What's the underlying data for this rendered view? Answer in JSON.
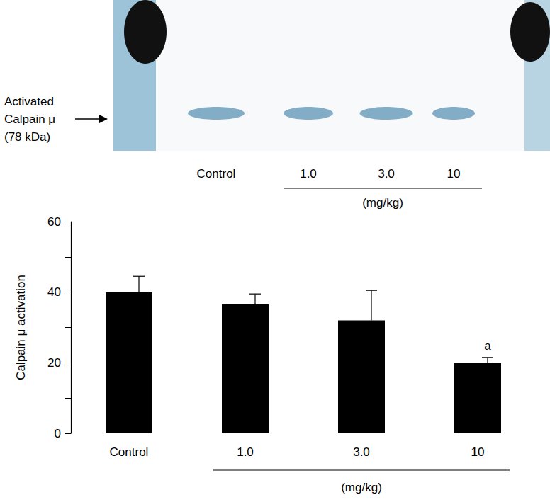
{
  "chart_data": {
    "type": "bar",
    "categories": [
      "Control",
      "1.0",
      "3.0",
      "10"
    ],
    "values": [
      40,
      36.5,
      32,
      20
    ],
    "errors": [
      4.5,
      3,
      8.5,
      1.5
    ],
    "color": "#000000",
    "ylabel": "Calpain μ activation",
    "ylim": [
      0,
      60
    ],
    "yticks": [
      0,
      20,
      40,
      60
    ],
    "x_group": {
      "label": "(mg/kg)",
      "categories": [
        "1.0",
        "3.0",
        "10"
      ]
    },
    "annotations": [
      {
        "text": "a",
        "category": "10"
      }
    ],
    "blot": {
      "label_lines": [
        "Activated",
        "Calpain μ",
        "(78 kDa)"
      ],
      "lanes": [
        "Control",
        "1.0",
        "3.0",
        "10"
      ],
      "group_label": "(mg/kg)",
      "group_lanes": [
        "1.0",
        "3.0",
        "10"
      ]
    }
  }
}
